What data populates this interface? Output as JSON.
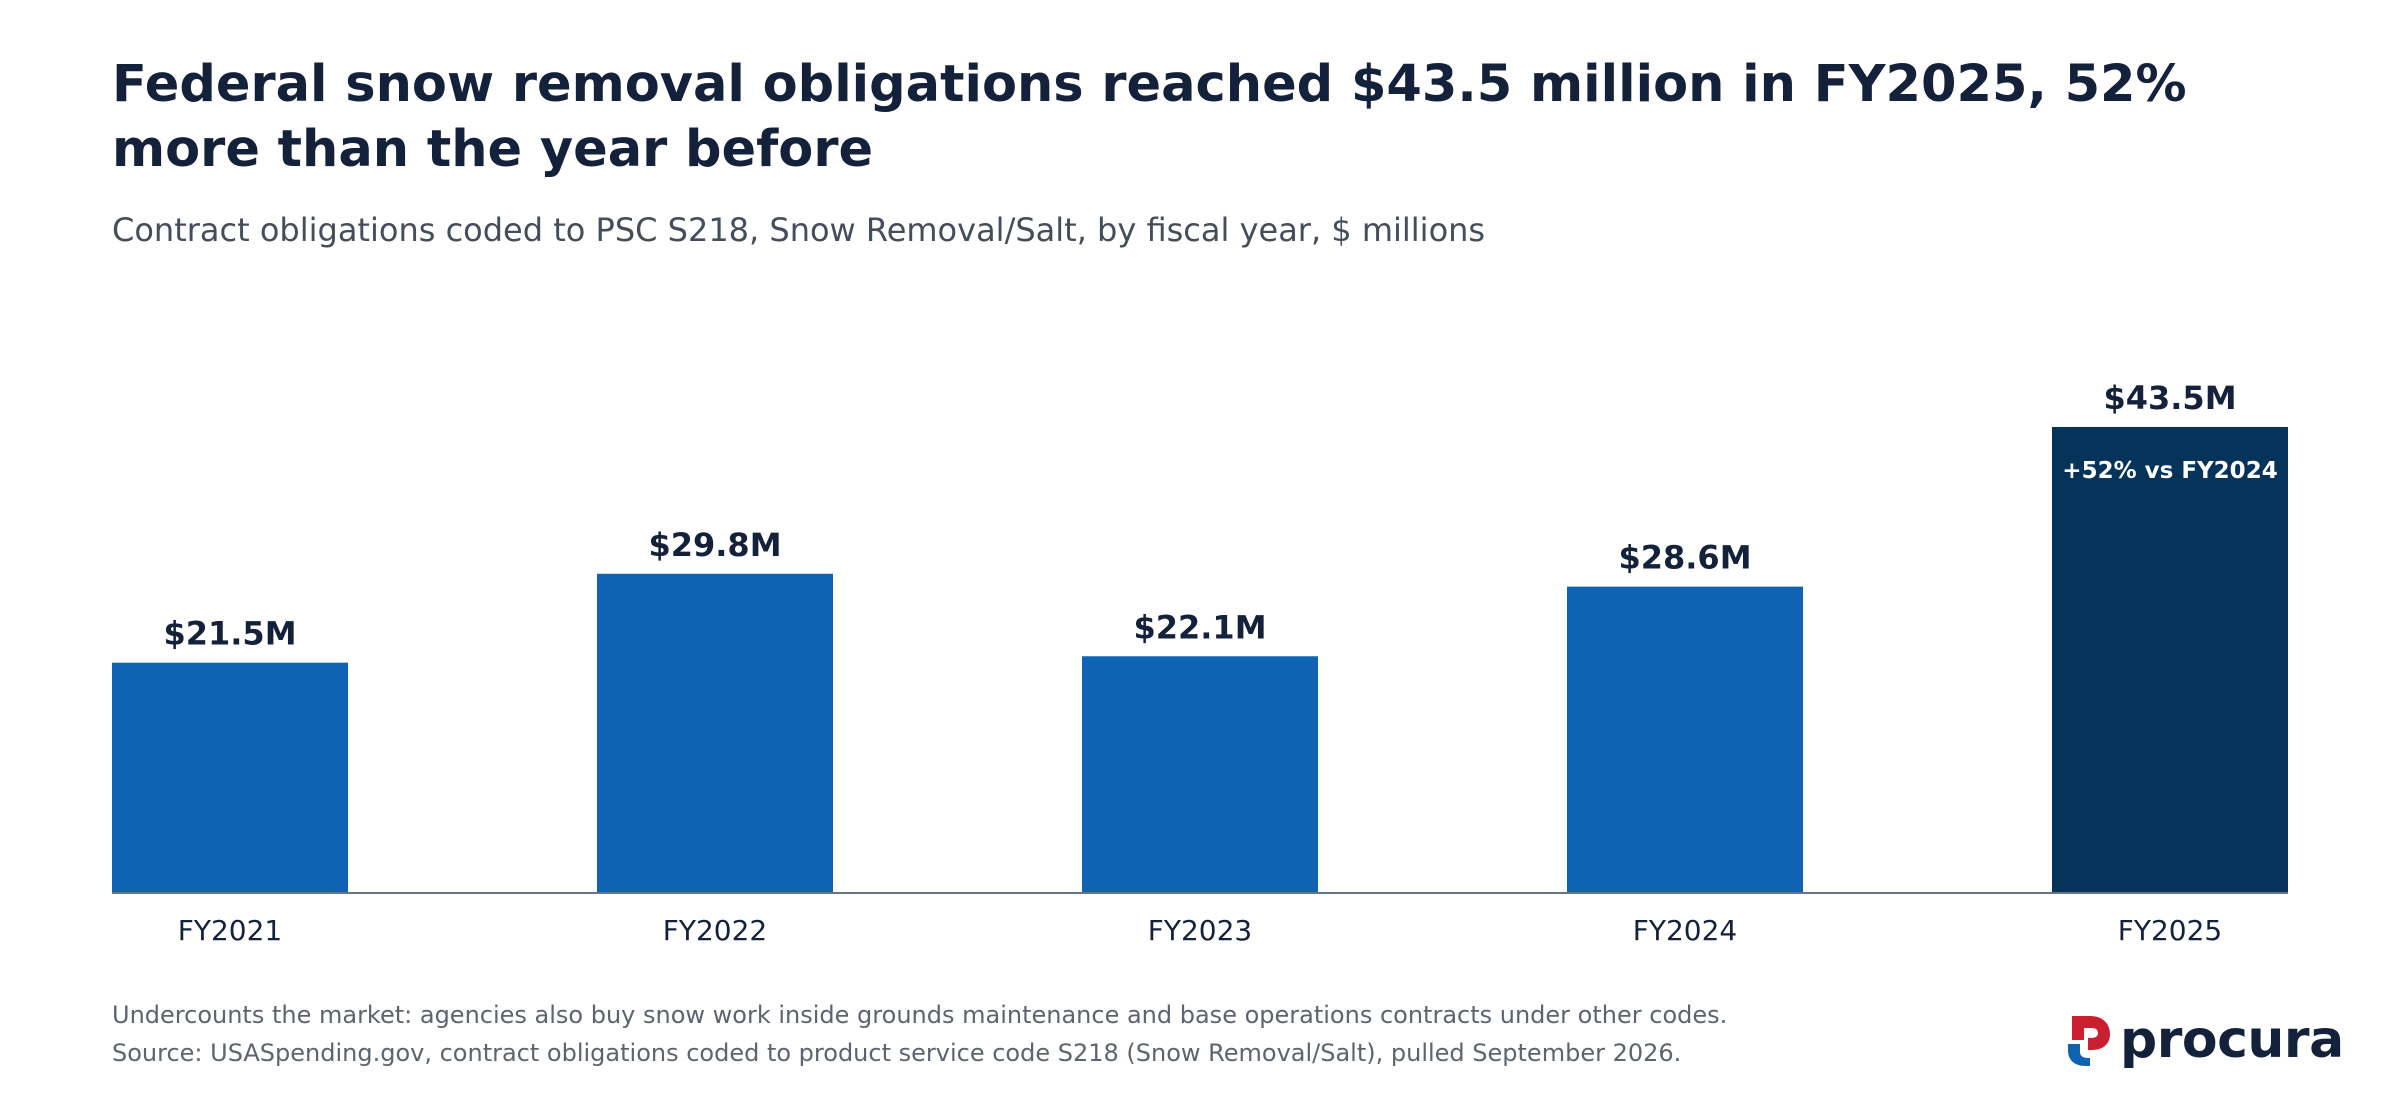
{
  "title": "Federal snow removal obligations reached $43.5 million in FY2025, 52% more than the year before",
  "subtitle": "Contract obligations coded to PSC S218, Snow Removal/Salt, by fiscal year, $ millions",
  "chart_data": {
    "type": "bar",
    "categories": [
      "FY2021",
      "FY2022",
      "FY2023",
      "FY2024",
      "FY2025"
    ],
    "values": [
      21.5,
      29.8,
      22.1,
      28.6,
      43.5
    ],
    "value_labels": [
      "$21.5M",
      "$29.8M",
      "$22.1M",
      "$28.6M",
      "$43.5M"
    ],
    "units": "$ millions",
    "ylim": [
      0,
      43.5
    ],
    "grid": false,
    "highlight_index": 4,
    "annotation": "+52% vs FY2024",
    "colors": {
      "bar": "#1062b2",
      "highlight": "#06335a",
      "axis": "#6b7280",
      "label": "#14213a",
      "annotation_text": "#ffffff"
    }
  },
  "footnotes": [
    "Undercounts the market: agencies also buy snow work inside grounds maintenance and base operations contracts under other codes.",
    "Source: USASpending.gov, contract obligations coded to product service code S218 (Snow Removal/Salt), pulled September 2026."
  ],
  "brand": {
    "name": "procura",
    "colors": {
      "red": "#c8202f",
      "blue": "#1062b2"
    }
  }
}
